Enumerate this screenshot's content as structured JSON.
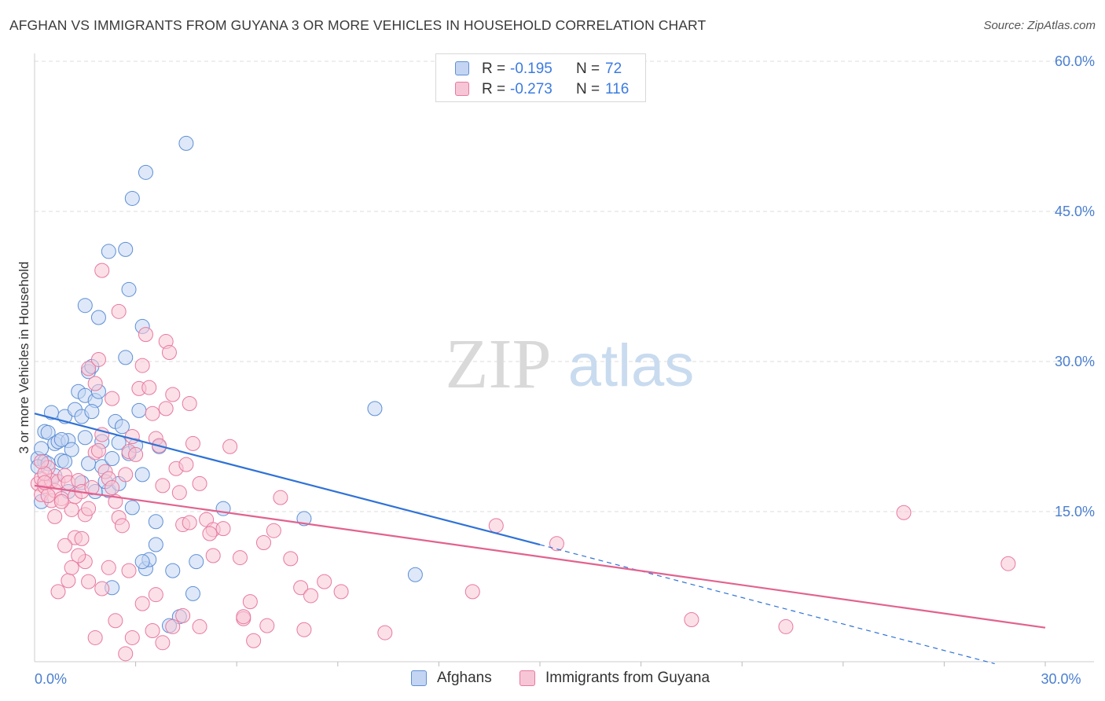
{
  "title": "AFGHAN VS IMMIGRANTS FROM GUYANA 3 OR MORE VEHICLES IN HOUSEHOLD CORRELATION CHART",
  "source": "Source: ZipAtlas.com",
  "watermark": {
    "left": "ZIP",
    "right": "atlas"
  },
  "legend": {
    "rows": [
      {
        "r_label": "R =",
        "r_value": "-0.195",
        "n_label": "N =",
        "n_value": "72"
      },
      {
        "r_label": "R =",
        "r_value": "-0.273",
        "n_label": "N =",
        "n_value": "116"
      }
    ],
    "bottom": [
      "Afghans",
      "Immigrants from Guyana"
    ]
  },
  "colors": {
    "afghans_fill": "#c3d5f2",
    "afghans_stroke": "#5e8fd6",
    "afghans_line": "#2f72d6",
    "guyana_fill": "#f7c6d6",
    "guyana_stroke": "#e8799f",
    "guyana_line": "#e2628f",
    "grid": "#dddddd",
    "tick_text": "#4a7fd0"
  },
  "chart_data": {
    "type": "scatter",
    "title": "AFGHAN VS IMMIGRANTS FROM GUYANA 3 OR MORE VEHICLES IN HOUSEHOLD CORRELATION CHART",
    "xlabel": "",
    "ylabel": "3 or more Vehicles in Household",
    "xlim": [
      0,
      30
    ],
    "ylim": [
      0,
      60
    ],
    "x_ticks": [
      0,
      30
    ],
    "x_tick_labels": [
      "0.0%",
      "30.0%"
    ],
    "y_ticks": [
      15,
      30,
      45,
      60
    ],
    "y_tick_labels": [
      "15.0%",
      "30.0%",
      "45.0%",
      "60.0%"
    ],
    "grid": true,
    "legend_position": "top-center",
    "series": [
      {
        "name": "Afghans",
        "r": -0.195,
        "n": 72,
        "trend": {
          "x": [
            0,
            15
          ],
          "y": [
            24.8,
            11.7
          ],
          "dashed_to": {
            "x": 28.5,
            "y": -0.2
          }
        },
        "points": [
          [
            0.1,
            20.3
          ],
          [
            0.2,
            21.3
          ],
          [
            0.3,
            20.0
          ],
          [
            0.3,
            23.0
          ],
          [
            0.4,
            22.9
          ],
          [
            0.5,
            24.9
          ],
          [
            0.6,
            21.8
          ],
          [
            0.7,
            22.0
          ],
          [
            0.8,
            20.1
          ],
          [
            0.9,
            24.5
          ],
          [
            1.0,
            22.1
          ],
          [
            1.1,
            21.2
          ],
          [
            1.2,
            25.2
          ],
          [
            1.3,
            27.0
          ],
          [
            1.4,
            24.5
          ],
          [
            1.5,
            26.6
          ],
          [
            1.6,
            29.0
          ],
          [
            1.7,
            29.5
          ],
          [
            1.8,
            26.1
          ],
          [
            1.9,
            27.0
          ],
          [
            1.5,
            22.4
          ],
          [
            1.6,
            19.8
          ],
          [
            1.7,
            25.0
          ],
          [
            2.0,
            22.0
          ],
          [
            2.0,
            19.5
          ],
          [
            2.2,
            17.1
          ],
          [
            2.3,
            20.3
          ],
          [
            2.4,
            24.0
          ],
          [
            2.5,
            21.9
          ],
          [
            2.6,
            23.5
          ],
          [
            2.8,
            20.8
          ],
          [
            2.9,
            15.4
          ],
          [
            3.0,
            21.6
          ],
          [
            3.2,
            18.7
          ],
          [
            3.1,
            25.1
          ],
          [
            3.3,
            9.3
          ],
          [
            3.4,
            10.2
          ],
          [
            3.6,
            14.0
          ],
          [
            1.5,
            35.6
          ],
          [
            1.9,
            34.4
          ],
          [
            2.2,
            41.0
          ],
          [
            2.7,
            41.2
          ],
          [
            2.9,
            46.3
          ],
          [
            2.8,
            37.2
          ],
          [
            3.3,
            48.9
          ],
          [
            4.5,
            51.8
          ],
          [
            3.2,
            33.5
          ],
          [
            2.7,
            30.4
          ],
          [
            2.1,
            18.0
          ],
          [
            1.4,
            17.9
          ],
          [
            0.9,
            20.0
          ],
          [
            0.6,
            18.6
          ],
          [
            1.8,
            17.0
          ],
          [
            2.5,
            17.8
          ],
          [
            4.1,
            9.1
          ],
          [
            4.7,
            6.8
          ],
          [
            3.6,
            11.7
          ],
          [
            3.2,
            10.0
          ],
          [
            2.3,
            7.4
          ],
          [
            4.3,
            4.5
          ],
          [
            4.0,
            3.6
          ],
          [
            4.8,
            10.0
          ],
          [
            5.6,
            15.3
          ],
          [
            8.0,
            14.3
          ],
          [
            10.1,
            25.3
          ],
          [
            11.3,
            8.7
          ],
          [
            0.2,
            16.0
          ],
          [
            0.1,
            19.5
          ],
          [
            0.4,
            19.8
          ],
          [
            1.0,
            17.0
          ],
          [
            0.8,
            22.2
          ],
          [
            3.7,
            21.5
          ]
        ]
      },
      {
        "name": "Immigrants from Guyana",
        "r": -0.273,
        "n": 116,
        "trend": {
          "x": [
            0,
            30
          ],
          "y": [
            17.6,
            3.4
          ]
        },
        "points": [
          [
            0.1,
            17.8
          ],
          [
            0.2,
            18.3
          ],
          [
            0.2,
            16.7
          ],
          [
            0.3,
            17.5
          ],
          [
            0.4,
            19.4
          ],
          [
            0.5,
            18.1
          ],
          [
            0.5,
            16.1
          ],
          [
            0.6,
            17.1
          ],
          [
            0.7,
            18.0
          ],
          [
            0.8,
            16.3
          ],
          [
            0.9,
            18.6
          ],
          [
            1.0,
            17.9
          ],
          [
            1.1,
            15.2
          ],
          [
            1.2,
            16.5
          ],
          [
            1.3,
            18.1
          ],
          [
            1.4,
            17.0
          ],
          [
            1.5,
            14.7
          ],
          [
            1.6,
            15.3
          ],
          [
            1.7,
            17.4
          ],
          [
            1.8,
            20.9
          ],
          [
            1.9,
            21.1
          ],
          [
            2.0,
            22.7
          ],
          [
            2.1,
            19.0
          ],
          [
            2.2,
            18.3
          ],
          [
            2.3,
            17.4
          ],
          [
            2.4,
            16.0
          ],
          [
            2.5,
            14.4
          ],
          [
            2.6,
            13.6
          ],
          [
            2.7,
            18.7
          ],
          [
            2.8,
            21.0
          ],
          [
            2.9,
            22.5
          ],
          [
            3.0,
            20.7
          ],
          [
            3.1,
            27.3
          ],
          [
            3.2,
            29.6
          ],
          [
            3.3,
            32.7
          ],
          [
            3.4,
            27.4
          ],
          [
            3.5,
            24.8
          ],
          [
            3.6,
            22.3
          ],
          [
            3.7,
            21.6
          ],
          [
            3.8,
            17.6
          ],
          [
            3.9,
            32.0
          ],
          [
            4.0,
            30.9
          ],
          [
            4.1,
            26.7
          ],
          [
            4.2,
            19.3
          ],
          [
            4.3,
            16.9
          ],
          [
            4.4,
            13.7
          ],
          [
            4.5,
            19.7
          ],
          [
            4.6,
            25.8
          ],
          [
            4.7,
            21.8
          ],
          [
            4.9,
            17.8
          ],
          [
            5.1,
            14.2
          ],
          [
            5.3,
            13.2
          ],
          [
            5.6,
            13.3
          ],
          [
            5.8,
            21.5
          ],
          [
            6.1,
            10.4
          ],
          [
            6.4,
            6.0
          ],
          [
            6.8,
            11.9
          ],
          [
            7.1,
            13.1
          ],
          [
            7.3,
            16.4
          ],
          [
            7.6,
            10.3
          ],
          [
            7.9,
            7.4
          ],
          [
            8.2,
            6.6
          ],
          [
            8.6,
            8.0
          ],
          [
            8.0,
            3.2
          ],
          [
            6.5,
            2.1
          ],
          [
            6.2,
            4.3
          ],
          [
            5.3,
            10.6
          ],
          [
            4.9,
            3.5
          ],
          [
            4.4,
            4.6
          ],
          [
            4.1,
            3.5
          ],
          [
            3.8,
            1.9
          ],
          [
            3.5,
            3.1
          ],
          [
            3.2,
            5.8
          ],
          [
            2.9,
            2.4
          ],
          [
            2.7,
            0.8
          ],
          [
            2.4,
            4.1
          ],
          [
            2.2,
            9.4
          ],
          [
            2.0,
            7.3
          ],
          [
            1.8,
            2.4
          ],
          [
            1.6,
            8.0
          ],
          [
            1.5,
            10.0
          ],
          [
            1.3,
            10.6
          ],
          [
            1.2,
            12.4
          ],
          [
            1.0,
            8.1
          ],
          [
            0.9,
            11.6
          ],
          [
            0.7,
            7.0
          ],
          [
            0.4,
            16.6
          ],
          [
            0.3,
            18.8
          ],
          [
            0.2,
            20.0
          ],
          [
            0.6,
            14.5
          ],
          [
            1.1,
            9.4
          ],
          [
            1.6,
            29.3
          ],
          [
            1.9,
            30.2
          ],
          [
            2.5,
            35.0
          ],
          [
            2.0,
            39.1
          ],
          [
            1.8,
            27.8
          ],
          [
            2.3,
            26.3
          ],
          [
            3.9,
            25.3
          ],
          [
            4.6,
            13.9
          ],
          [
            5.2,
            12.8
          ],
          [
            6.2,
            4.5
          ],
          [
            6.9,
            3.6
          ],
          [
            9.1,
            7.0
          ],
          [
            10.4,
            2.9
          ],
          [
            13.7,
            13.6
          ],
          [
            13.0,
            7.0
          ],
          [
            15.5,
            11.8
          ],
          [
            19.5,
            4.2
          ],
          [
            22.3,
            3.5
          ],
          [
            25.8,
            14.9
          ],
          [
            28.9,
            9.8
          ],
          [
            3.6,
            6.7
          ],
          [
            2.8,
            9.1
          ],
          [
            1.4,
            12.3
          ],
          [
            0.8,
            16.0
          ],
          [
            0.3,
            17.9
          ]
        ]
      }
    ]
  }
}
